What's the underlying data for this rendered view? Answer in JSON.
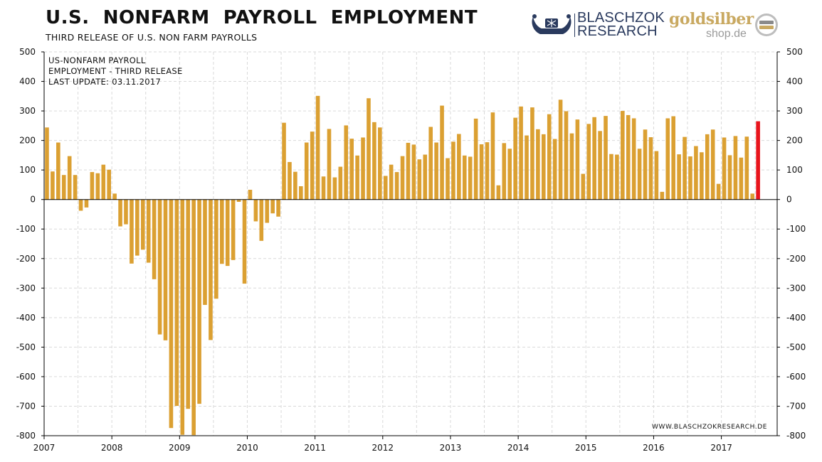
{
  "header": {
    "title": "U.S.  NONFARM  PAYROLL  EMPLOYMENT",
    "subtitle": "THIRD RELEASE OF U.S. NON FARM PAYROLLS"
  },
  "logos": {
    "blaschzok_line1": "BLASCHZOK",
    "blaschzok_line2": "RESEARCH",
    "goldsilber_line1": "goldsilber",
    "goldsilber_line2": "shop.de"
  },
  "legend": {
    "line1": "US-NONFARM PAYROLL",
    "line2": "EMPLOYMENT - THIRD RELEASE",
    "line3": "LAST UPDATE: 03.11.2017"
  },
  "source": "WWW.BLASCHZOKRESEARCH.DE",
  "colors": {
    "bar": "#dba032",
    "latest_bar": "#e8141c",
    "grid": "#d9d9d9",
    "axis": "#000000"
  },
  "chart_data": {
    "type": "bar",
    "title": "U.S.  NONFARM  PAYROLL  EMPLOYMENT",
    "subtitle": "THIRD RELEASE OF U.S. NON FARM PAYROLLS",
    "x_ticks": [
      "2007",
      "2008",
      "2009",
      "2010",
      "2011",
      "2012",
      "2013",
      "2014",
      "2015",
      "2016",
      "2017"
    ],
    "ylim": [
      -800,
      500
    ],
    "y_ticks": [
      500,
      400,
      300,
      200,
      100,
      0,
      -100,
      -200,
      -300,
      -400,
      -500,
      -600,
      -700,
      -800
    ],
    "y_axis_both_sides": true,
    "grid": true,
    "start": "2007-01",
    "frequency": "monthly",
    "highlight_last": true,
    "values": [
      244,
      95,
      193,
      83,
      147,
      83,
      -38,
      -27,
      93,
      89,
      118,
      101,
      20,
      -91,
      -84,
      -217,
      -190,
      -170,
      -214,
      -270,
      -457,
      -477,
      -774,
      -699,
      -797,
      -709,
      -798,
      -692,
      -357,
      -476,
      -336,
      -218,
      -225,
      -205,
      -8,
      -285,
      33,
      -74,
      -140,
      -79,
      -47,
      -58,
      260,
      127,
      94,
      45,
      193,
      230,
      351,
      78,
      239,
      75,
      111,
      251,
      206,
      149,
      210,
      343,
      262,
      244,
      80,
      118,
      93,
      147,
      192,
      186,
      136,
      152,
      246,
      193,
      318,
      140,
      196,
      222,
      149,
      145,
      274,
      187,
      194,
      295,
      48,
      191,
      172,
      277,
      315,
      217,
      312,
      238,
      221,
      289,
      205,
      338,
      299,
      224,
      271,
      87,
      256,
      279,
      232,
      283,
      154,
      152,
      300,
      286,
      275,
      172,
      237,
      211,
      164,
      26,
      275,
      282,
      153,
      212,
      146,
      181,
      160,
      221,
      237,
      53,
      210,
      150,
      215,
      142,
      213,
      20,
      265
    ]
  }
}
